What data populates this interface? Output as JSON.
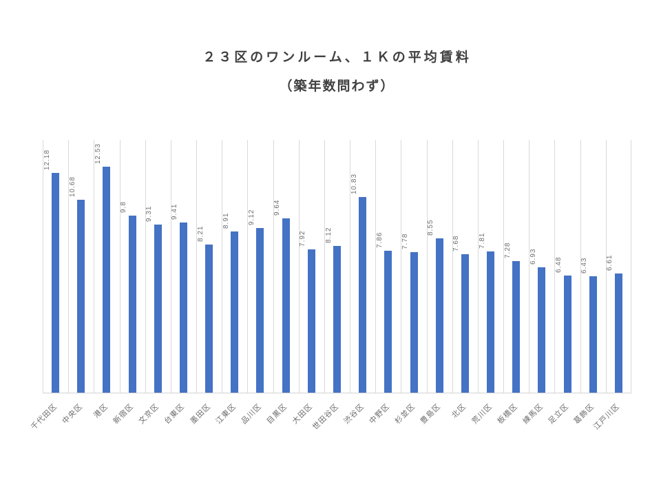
{
  "chart_data": {
    "type": "bar",
    "title": "２３区のワンルーム、１Ｋの平均賃料",
    "subtitle": "（築年数問わず）",
    "categories": [
      "千代田区",
      "中央区",
      "港区",
      "新宿区",
      "文京区",
      "台東区",
      "墨田区",
      "江東区",
      "品川区",
      "目黒区",
      "大田区",
      "世田谷区",
      "渋谷区",
      "中野区",
      "杉並区",
      "豊島区",
      "北区",
      "荒川区",
      "板橋区",
      "練馬区",
      "足立区",
      "葛飾区",
      "江戸川区"
    ],
    "values": [
      12.18,
      10.68,
      12.53,
      9.8,
      9.31,
      9.41,
      8.21,
      8.91,
      9.12,
      9.64,
      7.92,
      8.12,
      10.83,
      7.86,
      7.78,
      8.55,
      7.68,
      7.81,
      7.28,
      6.93,
      6.48,
      6.43,
      6.61
    ],
    "value_labels": [
      "12.18",
      "10.68",
      "12.53",
      "9.8",
      "9.31",
      "9.41",
      "8.21",
      "8.91",
      "9.12",
      "9.64",
      "7.92",
      "8.12",
      "10.83",
      "7.86",
      "7.78",
      "8.55",
      "7.68",
      "7.81",
      "7.28",
      "6.93",
      "6.48",
      "6.43",
      "6.61"
    ],
    "xlabel": "",
    "ylabel": "",
    "ylim": [
      0,
      14
    ],
    "grid": "vertical-category-lines",
    "legend": "none",
    "colors": {
      "bar": "#4472C4",
      "gridline": "#D9D9D9",
      "axis_line": "#D2D2D2",
      "data_label": "#6E6E6E",
      "category_label": "#6E6E6E",
      "title": "#404040"
    }
  }
}
